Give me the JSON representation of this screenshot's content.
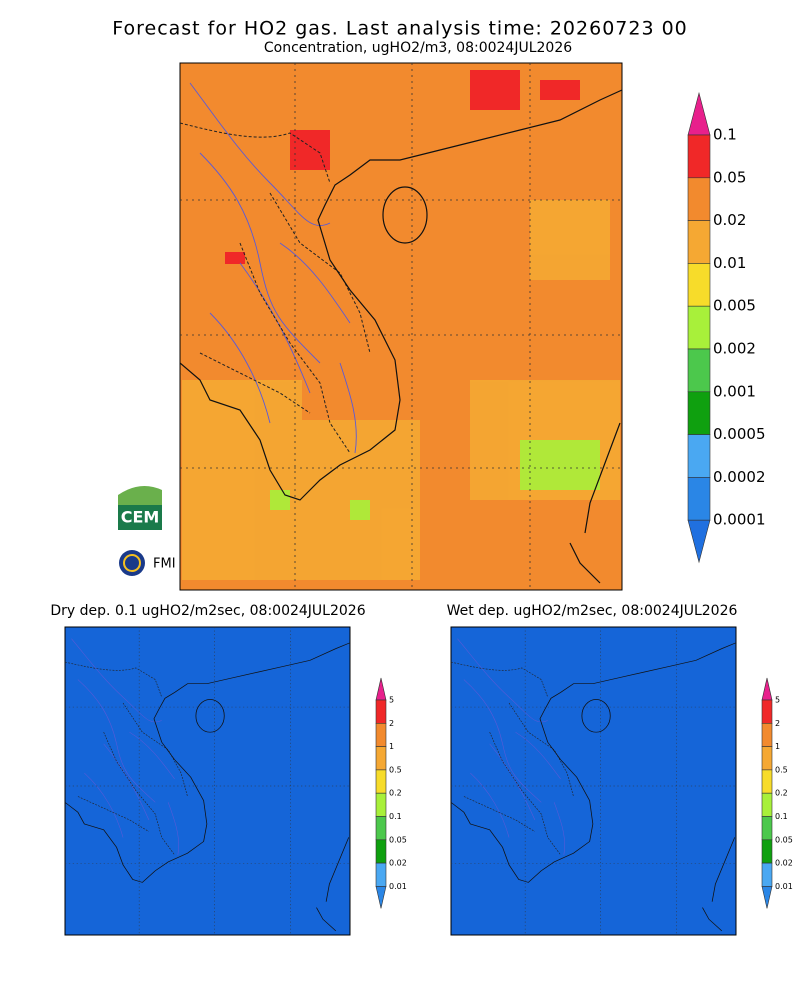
{
  "header": {
    "title": "Forecast for HO2 gas. Last analysis time: 20260723 00",
    "subtitle": "Concentration, ugHO2/m3, 08:0024JUL2026"
  },
  "colorbar": {
    "labels": [
      "0.1",
      "0.05",
      "0.02",
      "0.01",
      "0.005",
      "0.002",
      "0.001",
      "0.0005",
      "0.0002",
      "0.0001"
    ],
    "colors": [
      "#e8208c",
      "#f02828",
      "#f28a2e",
      "#f5a833",
      "#f7dc2a",
      "#a8f03a",
      "#4cc84c",
      "#0fa00f",
      "#4aa8f2",
      "#2a86e6",
      "#2070e0"
    ]
  },
  "panels": [
    {
      "title": "Dry dep. 0.1 ugHO2/m2sec, 08:0024JUL2026",
      "colorbar": {
        "labels": [
          "5",
          "2",
          "1",
          "0.5",
          "0.2",
          "0.1",
          "0.05",
          "0.02",
          "0.01"
        ],
        "colors": [
          "#e8208c",
          "#f02828",
          "#f28a2e",
          "#f5a833",
          "#f7dc2a",
          "#a8f03a",
          "#4cc84c",
          "#0fa00f",
          "#4aa8f2",
          "#2a86e6"
        ]
      }
    },
    {
      "title": "Wet dep. ugHO2/m2sec, 08:0024JUL2026",
      "colorbar": {
        "labels": [
          "5",
          "2",
          "1",
          "0.5",
          "0.2",
          "0.1",
          "0.05",
          "0.02",
          "0.01"
        ],
        "colors": [
          "#e8208c",
          "#f02828",
          "#f28a2e",
          "#f5a833",
          "#f7dc2a",
          "#a8f03a",
          "#4cc84c",
          "#0fa00f",
          "#4aa8f2",
          "#2a86e6"
        ]
      }
    }
  ],
  "logos": {
    "cem": "CEM",
    "fmi": "FMI"
  }
}
